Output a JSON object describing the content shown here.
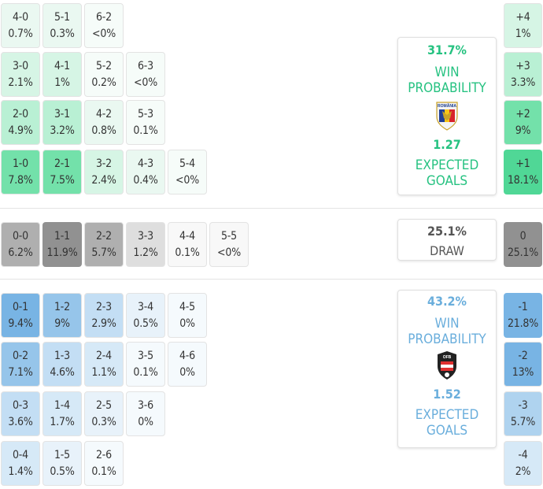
{
  "home": {
    "win_probability": "31.7%",
    "win_label": "WIN PROBABILITY",
    "expected_goals": "1.27",
    "xg_label": "EXPECTED GOALS",
    "badge_text": "ROMÂNIA",
    "color": "#2ecc8a"
  },
  "draw": {
    "probability": "25.1%",
    "label": "DRAW"
  },
  "away": {
    "win_probability": "43.2%",
    "win_label": "WIN PROBABILITY",
    "expected_goals": "1.52",
    "xg_label": "EXPECTED GOALS",
    "badge_text": "OFB",
    "color": "#6aaedc"
  },
  "chart_data": {
    "type": "heatmap",
    "title": "",
    "home_scores": {
      "rows": [
        [
          {
            "score": "4-0",
            "p": "0.7%"
          },
          {
            "score": "5-1",
            "p": "0.3%"
          },
          {
            "score": "6-2",
            "p": "<0%"
          }
        ],
        [
          {
            "score": "3-0",
            "p": "2.1%"
          },
          {
            "score": "4-1",
            "p": "1%"
          },
          {
            "score": "5-2",
            "p": "0.2%"
          },
          {
            "score": "6-3",
            "p": "<0%"
          }
        ],
        [
          {
            "score": "2-0",
            "p": "4.9%"
          },
          {
            "score": "3-1",
            "p": "3.2%"
          },
          {
            "score": "4-2",
            "p": "0.8%"
          },
          {
            "score": "5-3",
            "p": "0.1%"
          }
        ],
        [
          {
            "score": "1-0",
            "p": "7.8%"
          },
          {
            "score": "2-1",
            "p": "7.5%"
          },
          {
            "score": "3-2",
            "p": "2.4%"
          },
          {
            "score": "4-3",
            "p": "0.4%"
          },
          {
            "score": "5-4",
            "p": "<0%"
          }
        ]
      ],
      "margins": [
        {
          "label": "+4",
          "p": "1%"
        },
        {
          "label": "+3",
          "p": "3.3%"
        },
        {
          "label": "+2",
          "p": "9%"
        },
        {
          "label": "+1",
          "p": "18.1%"
        }
      ]
    },
    "draw_scores": {
      "rows": [
        [
          {
            "score": "0-0",
            "p": "6.2%"
          },
          {
            "score": "1-1",
            "p": "11.9%"
          },
          {
            "score": "2-2",
            "p": "5.7%"
          },
          {
            "score": "3-3",
            "p": "1.2%"
          },
          {
            "score": "4-4",
            "p": "0.1%"
          },
          {
            "score": "5-5",
            "p": "<0%"
          }
        ]
      ],
      "margins": [
        {
          "label": "0",
          "p": "25.1%"
        }
      ]
    },
    "away_scores": {
      "rows": [
        [
          {
            "score": "0-1",
            "p": "9.4%"
          },
          {
            "score": "1-2",
            "p": "9%"
          },
          {
            "score": "2-3",
            "p": "2.9%"
          },
          {
            "score": "3-4",
            "p": "0.5%"
          },
          {
            "score": "4-5",
            "p": "0%"
          }
        ],
        [
          {
            "score": "0-2",
            "p": "7.1%"
          },
          {
            "score": "1-3",
            "p": "4.6%"
          },
          {
            "score": "2-4",
            "p": "1.1%"
          },
          {
            "score": "3-5",
            "p": "0.1%"
          },
          {
            "score": "4-6",
            "p": "0%"
          }
        ],
        [
          {
            "score": "0-3",
            "p": "3.6%"
          },
          {
            "score": "1-4",
            "p": "1.7%"
          },
          {
            "score": "2-5",
            "p": "0.3%"
          },
          {
            "score": "3-6",
            "p": "0%"
          }
        ],
        [
          {
            "score": "0-4",
            "p": "1.4%"
          },
          {
            "score": "1-5",
            "p": "0.5%"
          },
          {
            "score": "2-6",
            "p": "0.1%"
          }
        ]
      ],
      "margins": [
        {
          "label": "-1",
          "p": "21.8%"
        },
        {
          "label": "-2",
          "p": "13%"
        },
        {
          "label": "-3",
          "p": "5.7%"
        },
        {
          "label": "-4",
          "p": "2%"
        }
      ]
    }
  }
}
